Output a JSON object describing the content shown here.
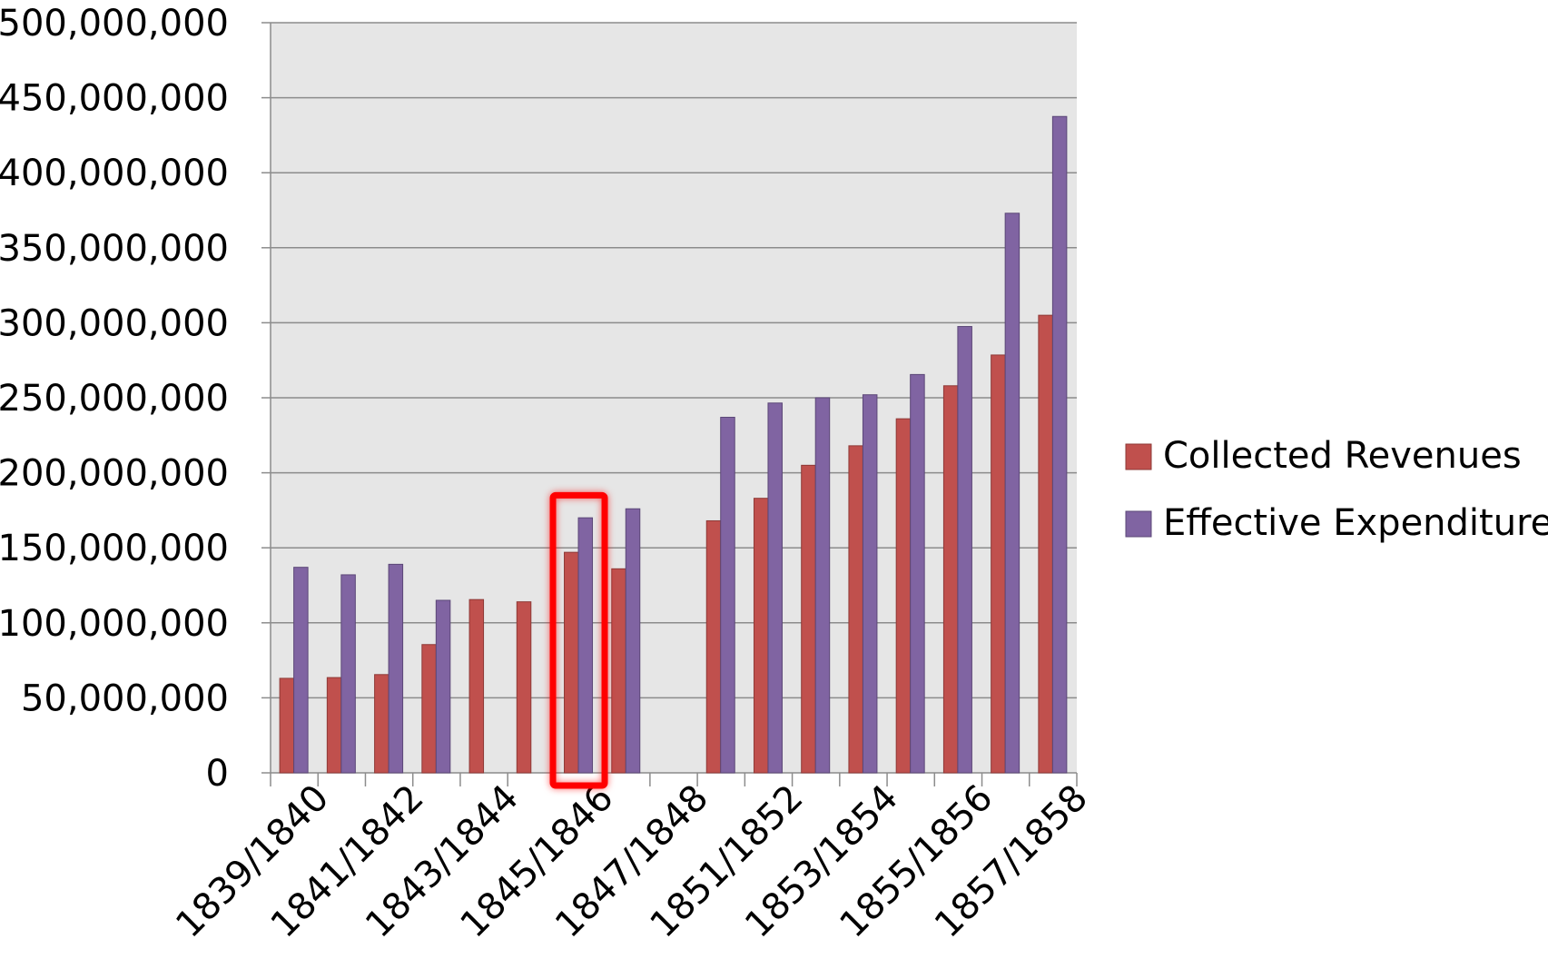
{
  "chart_data": {
    "type": "bar",
    "title": "",
    "xlabel": "",
    "ylabel": "",
    "ylim": [
      0,
      500000000
    ],
    "yticks": [
      0,
      50000000,
      100000000,
      150000000,
      200000000,
      250000000,
      300000000,
      350000000,
      400000000,
      450000000,
      500000000
    ],
    "ytick_labels": [
      "0",
      "50,000,000",
      "100,000,000",
      "150,000,000",
      "200,000,000",
      "250,000,000",
      "300,000,000",
      "350,000,000",
      "400,000,000",
      "450,000,000",
      "500,000,000"
    ],
    "categories": [
      "1839/1840",
      "1840/1841",
      "1841/1842",
      "1842/1843",
      "1843/1844",
      "1844/1845",
      "1845/1846",
      "1846/1847",
      "1847/1848",
      "1850/1851",
      "1851/1852",
      "1852/1853",
      "1853/1854",
      "1854/1855",
      "1855/1856",
      "1856/1857",
      "1857/1858"
    ],
    "xtick_labels_shown": [
      "1839/1840",
      "1841/1842",
      "1843/1844",
      "1845/1846",
      "1847/1848",
      "1851/1852",
      "1853/1854",
      "1855/1856",
      "1857/1858"
    ],
    "series": [
      {
        "name": "Collected Revenues",
        "color": "#C0504D",
        "values": [
          63000000,
          63500000,
          65500000,
          85500000,
          115500000,
          114000000,
          147000000,
          136000000,
          null,
          168000000,
          183000000,
          205000000,
          218000000,
          236000000,
          258000000,
          278500000,
          305000000
        ]
      },
      {
        "name": "Effective Expenditure",
        "color": "#8064A2",
        "values": [
          137000000,
          132000000,
          139000000,
          115000000,
          null,
          null,
          170000000,
          176000000,
          null,
          237000000,
          246500000,
          250000000,
          252000000,
          265500000,
          297500000,
          373000000,
          437500000
        ]
      }
    ],
    "grid": true,
    "plot_background": "#E6E6E6",
    "legend_position": "right",
    "highlight": {
      "category": "1845/1846",
      "color": "#FF0000"
    }
  }
}
